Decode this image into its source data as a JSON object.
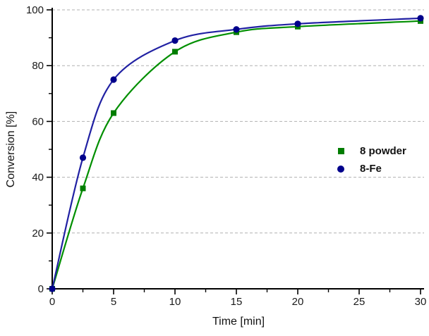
{
  "chart_data": {
    "type": "line",
    "title": "",
    "xlabel": "Time [min]",
    "ylabel": "Conversion [%]",
    "xlim": [
      0,
      30
    ],
    "ylim": [
      0,
      100
    ],
    "x_major_ticks": [
      0,
      5,
      10,
      15,
      20,
      25,
      30
    ],
    "x_minor_ticks": [
      2.5,
      7.5,
      12.5,
      17.5,
      22.5,
      27.5
    ],
    "y_major_ticks": [
      0,
      20,
      40,
      60,
      80,
      100
    ],
    "y_minor_ticks": [
      10,
      30,
      50,
      70,
      90
    ],
    "grid": {
      "show": true,
      "levels": [
        20,
        40,
        60,
        80,
        100
      ],
      "style": "dashed",
      "color": "#b0b0b0"
    },
    "legend": {
      "position": "right-middle"
    },
    "axis_color": "#000000",
    "tick_label_color": "#1a1a1a",
    "series": [
      {
        "name": "8 powder",
        "marker": "square",
        "line_color": "#008f00",
        "marker_color": "#007d00",
        "x": [
          0,
          2.5,
          5,
          10,
          15,
          20,
          30
        ],
        "y": [
          0,
          36,
          63,
          85,
          92,
          94,
          96
        ]
      },
      {
        "name": "8-Fe",
        "marker": "circle",
        "line_color": "#2121a3",
        "marker_color": "#00008b",
        "x": [
          0,
          2.5,
          5,
          10,
          15,
          20,
          30
        ],
        "y": [
          0,
          47,
          75,
          89,
          93,
          95,
          97
        ]
      }
    ]
  }
}
